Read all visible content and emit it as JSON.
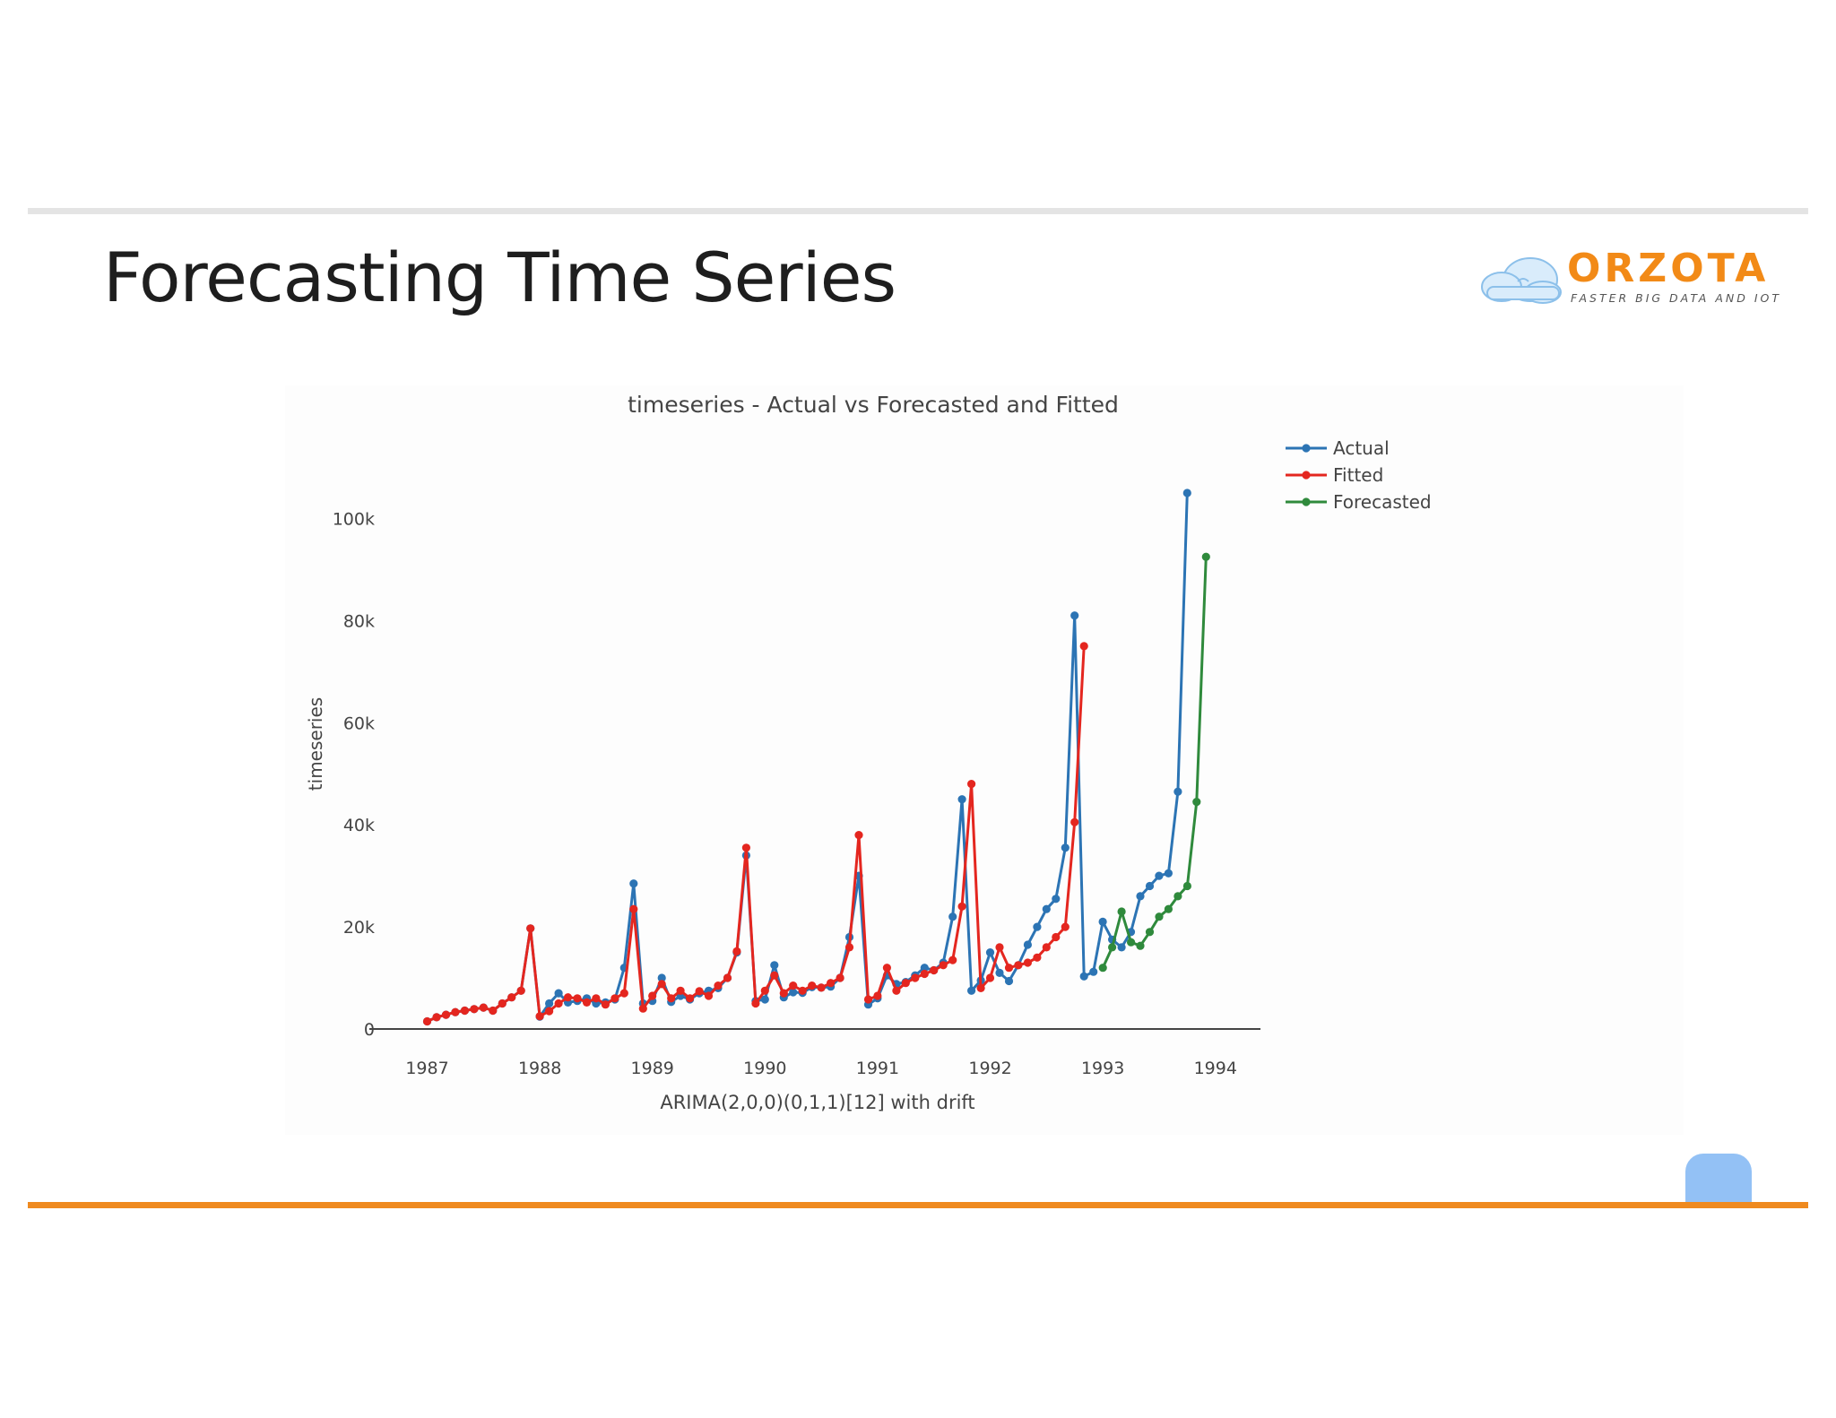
{
  "slide": {
    "title": "Forecasting Time Series",
    "logo_name": "ORZOTA",
    "logo_tagline": "FASTER BIG DATA AND IOT",
    "colors": {
      "accent_orange": "#ef8a1f",
      "top_rule": "#e4e4e4",
      "blob": "#93c1f5"
    }
  },
  "chart_data": {
    "type": "line",
    "title": "timeseries - Actual vs Forecasted and Fitted",
    "xlabel": "ARIMA(2,0,0)(0,1,1)[12] with drift",
    "ylabel": "timeseries",
    "xlim": [
      1986.55,
      1994.4
    ],
    "ylim": [
      0,
      105000
    ],
    "x_ticks": [
      1987,
      1988,
      1989,
      1990,
      1991,
      1992,
      1993,
      1994
    ],
    "x_tick_labels": [
      "1987",
      "1988",
      "1989",
      "1990",
      "1991",
      "1992",
      "1993",
      "1994"
    ],
    "y_ticks": [
      0,
      20000,
      40000,
      60000,
      80000,
      100000
    ],
    "y_tick_labels": [
      "0",
      "20k",
      "40k",
      "60k",
      "80k",
      "100k"
    ],
    "grid": false,
    "legend": {
      "position": "top-right",
      "entries": [
        "Actual",
        "Fitted",
        "Forecasted"
      ]
    },
    "x_start": 1987,
    "x_step": 0.08333,
    "series": [
      {
        "name": "Actual",
        "color": "#2c74b4",
        "values": [
          1500,
          2300,
          2800,
          3300,
          3600,
          3900,
          4200,
          3600,
          5000,
          6200,
          7500,
          19700,
          2400,
          5000,
          7000,
          5200,
          5500,
          6000,
          5000,
          5200,
          5800,
          12000,
          28500,
          5000,
          5500,
          10000,
          5300,
          6500,
          5800,
          7000,
          7500,
          8000,
          10000,
          15000,
          34000,
          5500,
          5800,
          12500,
          6200,
          7200,
          7100,
          8200,
          8100,
          8300,
          10000,
          18000,
          30000,
          4800,
          6000,
          10500,
          8800,
          9200,
          10500,
          12000,
          11500,
          13000,
          22000,
          45000,
          7500,
          9500,
          15000,
          11000,
          9400,
          12500,
          16500,
          20000,
          23500,
          25500,
          35500,
          81000,
          10300,
          11200,
          21000,
          17500,
          16000,
          19000,
          26000,
          28000,
          30000,
          30500,
          46500,
          105000
        ]
      },
      {
        "name": "Fitted",
        "color": "#e4261f",
        "values": [
          1500,
          2300,
          2800,
          3300,
          3600,
          3900,
          4200,
          3600,
          5000,
          6200,
          7500,
          19700,
          2500,
          3500,
          5000,
          6200,
          6000,
          5200,
          6000,
          4800,
          6000,
          7000,
          23500,
          4000,
          6500,
          8800,
          6000,
          7500,
          6000,
          7400,
          6500,
          8500,
          10000,
          15200,
          35500,
          5000,
          7500,
          10500,
          7000,
          8500,
          7500,
          8500,
          8100,
          9000,
          10000,
          16000,
          38000,
          5800,
          6500,
          12000,
          7500,
          9000,
          10000,
          10800,
          11500,
          12500,
          13500,
          24000,
          48000,
          8000,
          10000,
          16000,
          12000,
          12500,
          13000,
          14000,
          16000,
          18000,
          20000,
          40500,
          75000
        ]
      },
      {
        "name": "Forecasted",
        "color": "#2f8a3c",
        "x_start": 1993.0,
        "values": [
          12000,
          16000,
          23000,
          17000,
          16300,
          19000,
          22000,
          23500,
          26000,
          28000,
          44500,
          92500
        ]
      }
    ]
  }
}
